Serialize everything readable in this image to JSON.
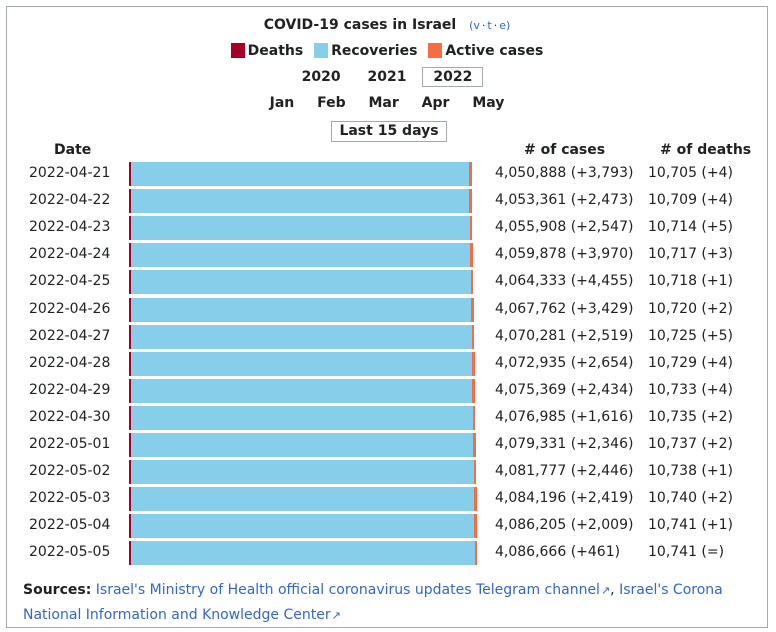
{
  "title": "COVID-19 cases in Israel",
  "vte": [
    "v",
    "t",
    "e"
  ],
  "legend": [
    {
      "label": "Deaths",
      "color": "#a50026"
    },
    {
      "label": "Recoveries",
      "color": "#87ceeb"
    },
    {
      "label": "Active cases",
      "color": "#f46d43"
    }
  ],
  "years": [
    "2020",
    "2021",
    "2022"
  ],
  "selected_year": "2022",
  "months": [
    "Jan",
    "Feb",
    "Mar",
    "Apr",
    "May"
  ],
  "last_15_label": "Last 15 days",
  "headers": {
    "date": "Date",
    "cases": "# of cases",
    "deaths": "# of deaths"
  },
  "chart_data": {
    "type": "bar",
    "orientation": "horizontal-stacked",
    "categories": [
      "2022-04-21",
      "2022-04-22",
      "2022-04-23",
      "2022-04-24",
      "2022-04-25",
      "2022-04-26",
      "2022-04-27",
      "2022-04-28",
      "2022-04-29",
      "2022-04-30",
      "2022-05-01",
      "2022-05-02",
      "2022-05-03",
      "2022-05-04",
      "2022-05-05"
    ],
    "series": [
      {
        "name": "Deaths",
        "values": [
          10705,
          10709,
          10714,
          10717,
          10718,
          10720,
          10725,
          10729,
          10733,
          10735,
          10737,
          10738,
          10740,
          10741,
          10741
        ]
      },
      {
        "name": "Recoveries",
        "values": [
          4006000,
          4009300,
          4012700,
          4018900,
          4024400,
          4031300,
          4036900,
          4040400,
          4044100,
          4050800,
          4054200,
          4058800,
          4063600,
          4067300,
          4070000
        ]
      },
      {
        "name": "Active cases",
        "values": [
          34183,
          33352,
          32494,
          30261,
          29215,
          25742,
          22656,
          21806,
          20536,
          15450,
          14394,
          12239,
          9856,
          8164,
          5925
        ]
      }
    ],
    "cases_labels": [
      "4,050,888 (+3,793)",
      "4,053,361 (+2,473)",
      "4,055,908 (+2,547)",
      "4,059,878 (+3,970)",
      "4,064,333 (+4,455)",
      "4,067,762 (+3,429)",
      "4,070,281 (+2,519)",
      "4,072,935 (+2,654)",
      "4,075,369 (+2,434)",
      "4,076,985 (+1,616)",
      "4,079,331 (+2,346)",
      "4,081,777 (+2,446)",
      "4,084,196 (+2,419)",
      "4,086,205 (+2,009)",
      "4,086,666 (+461)"
    ],
    "deaths_labels": [
      "10,705 (+4)",
      "10,709 (+4)",
      "10,714 (+5)",
      "10,717 (+3)",
      "10,718 (+1)",
      "10,720 (+2)",
      "10,725 (+5)",
      "10,729 (+4)",
      "10,733 (+4)",
      "10,735 (+2)",
      "10,737 (+2)",
      "10,738 (+1)",
      "10,740 (+2)",
      "10,741 (+1)",
      "10,741 (=)"
    ]
  },
  "sources": {
    "label": "Sources:",
    "links": [
      "Israel's Ministry of Health official coronavirus updates Telegram channel",
      "Israel's Corona National Information and Knowledge Center"
    ],
    "separator": ", "
  }
}
